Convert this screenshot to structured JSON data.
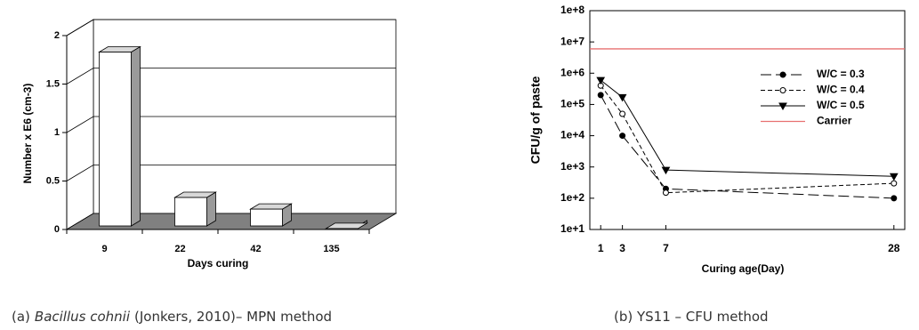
{
  "chart_data": [
    {
      "type": "bar",
      "caption": [
        {
          "text": "(a)"
        },
        {
          "text": "Bacillus cohnii",
          "italic": true
        },
        {
          "text": "(Jonkers, 2010)– MPN method"
        }
      ],
      "x_label": "Days curing",
      "y_label": "Number x E6 (cm-3)",
      "categories": [
        "9",
        "22",
        "42",
        "135"
      ],
      "values": [
        1.83,
        0.33,
        0.21,
        0.01
      ],
      "color": "#ffffff",
      "ylim": [
        0,
        2
      ],
      "yticks": [
        0,
        0.5,
        1,
        1.5,
        2
      ],
      "grid": true
    },
    {
      "type": "line",
      "caption": [
        {
          "text": "(b) YS11 – CFU method"
        }
      ],
      "x_label": "Curing age(Day)",
      "y_label": "CFU/g of paste",
      "x": [
        1,
        3,
        7,
        28
      ],
      "xlim": [
        0,
        29
      ],
      "xticks": [
        1,
        3,
        7,
        28
      ],
      "ylim": [
        10,
        100000000
      ],
      "log_scale": true,
      "yticks": [
        {
          "value": 10,
          "label": "1e+1"
        },
        {
          "value": 100,
          "label": "1e+2"
        },
        {
          "value": 1000,
          "label": "1e+3"
        },
        {
          "value": 10000,
          "label": "1e+4"
        },
        {
          "value": 100000,
          "label": "1e+5"
        },
        {
          "value": 1000000,
          "label": "1e+6"
        },
        {
          "value": 10000000,
          "label": "1e+7"
        },
        {
          "value": 100000000,
          "label": "1e+8"
        }
      ],
      "legend": "upper right",
      "series": [
        {
          "name": "W/C = 0.3",
          "color": "#000000",
          "linestyle": "long-dash",
          "marker": "filled-circle",
          "values": [
            200000,
            10000,
            200,
            100
          ]
        },
        {
          "name": "W/C = 0.4",
          "color": "#000000",
          "linestyle": "dashed",
          "marker": "open-circle",
          "values": [
            400000,
            50000,
            150,
            300
          ]
        },
        {
          "name": "W/C = 0.5",
          "color": "#000000",
          "linestyle": "solid",
          "marker": "triangle-down",
          "values": [
            600000,
            170000,
            800,
            500
          ]
        }
      ],
      "reference_lines": [
        {
          "name": "Carrier",
          "value": 6000000,
          "color": "#e87070"
        }
      ]
    }
  ]
}
